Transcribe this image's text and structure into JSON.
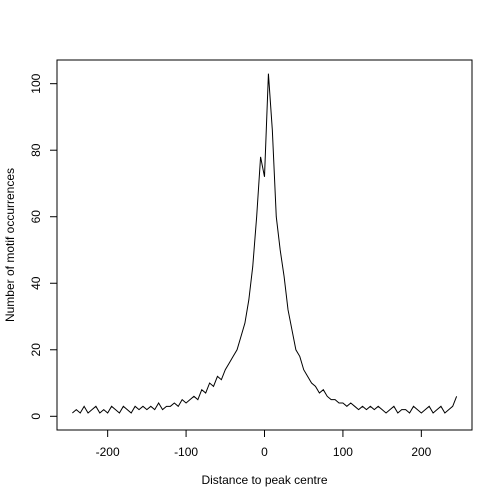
{
  "chart_data": {
    "type": "line",
    "x_label": "Distance to peak centre",
    "y_label": "Number of motif occurrences",
    "x": [
      -245,
      -240,
      -235,
      -230,
      -225,
      -220,
      -215,
      -210,
      -205,
      -200,
      -195,
      -190,
      -185,
      -180,
      -175,
      -170,
      -165,
      -160,
      -155,
      -150,
      -145,
      -140,
      -135,
      -130,
      -125,
      -120,
      -115,
      -110,
      -105,
      -100,
      -95,
      -90,
      -85,
      -80,
      -75,
      -70,
      -65,
      -60,
      -55,
      -50,
      -45,
      -40,
      -35,
      -30,
      -25,
      -20,
      -15,
      -10,
      -5,
      0,
      5,
      10,
      15,
      20,
      25,
      30,
      35,
      40,
      45,
      50,
      55,
      60,
      65,
      70,
      75,
      80,
      85,
      90,
      95,
      100,
      105,
      110,
      115,
      120,
      125,
      130,
      135,
      140,
      145,
      150,
      155,
      160,
      165,
      170,
      175,
      180,
      185,
      190,
      195,
      200,
      205,
      210,
      215,
      220,
      225,
      230,
      235,
      240,
      245
    ],
    "series": [
      {
        "color": "#000000",
        "values": [
          1,
          2,
          1,
          3,
          1,
          2,
          3,
          1,
          2,
          1,
          3,
          2,
          1,
          3,
          2,
          1,
          3,
          2,
          3,
          2,
          3,
          2,
          4,
          2,
          3,
          3,
          4,
          3,
          5,
          4,
          5,
          6,
          5,
          8,
          7,
          10,
          9,
          12,
          11,
          14,
          16,
          18,
          20,
          24,
          28,
          35,
          45,
          60,
          78,
          72,
          103,
          86,
          60,
          50,
          42,
          32,
          26,
          20,
          18,
          14,
          12,
          10,
          9,
          7,
          8,
          6,
          5,
          5,
          4,
          4,
          3,
          4,
          3,
          2,
          3,
          2,
          3,
          2,
          3,
          2,
          1,
          2,
          3,
          1,
          2,
          2,
          1,
          3,
          2,
          1,
          2,
          3,
          1,
          2,
          3,
          1,
          2,
          3,
          6
        ]
      }
    ],
    "xlim": [
      -264.6,
      264.6
    ],
    "ylim": [
      -4.12,
      107.12
    ],
    "xticks": [
      -200,
      -100,
      0,
      100,
      200
    ],
    "yticks": [
      0,
      20,
      40,
      60,
      80,
      100
    ]
  }
}
